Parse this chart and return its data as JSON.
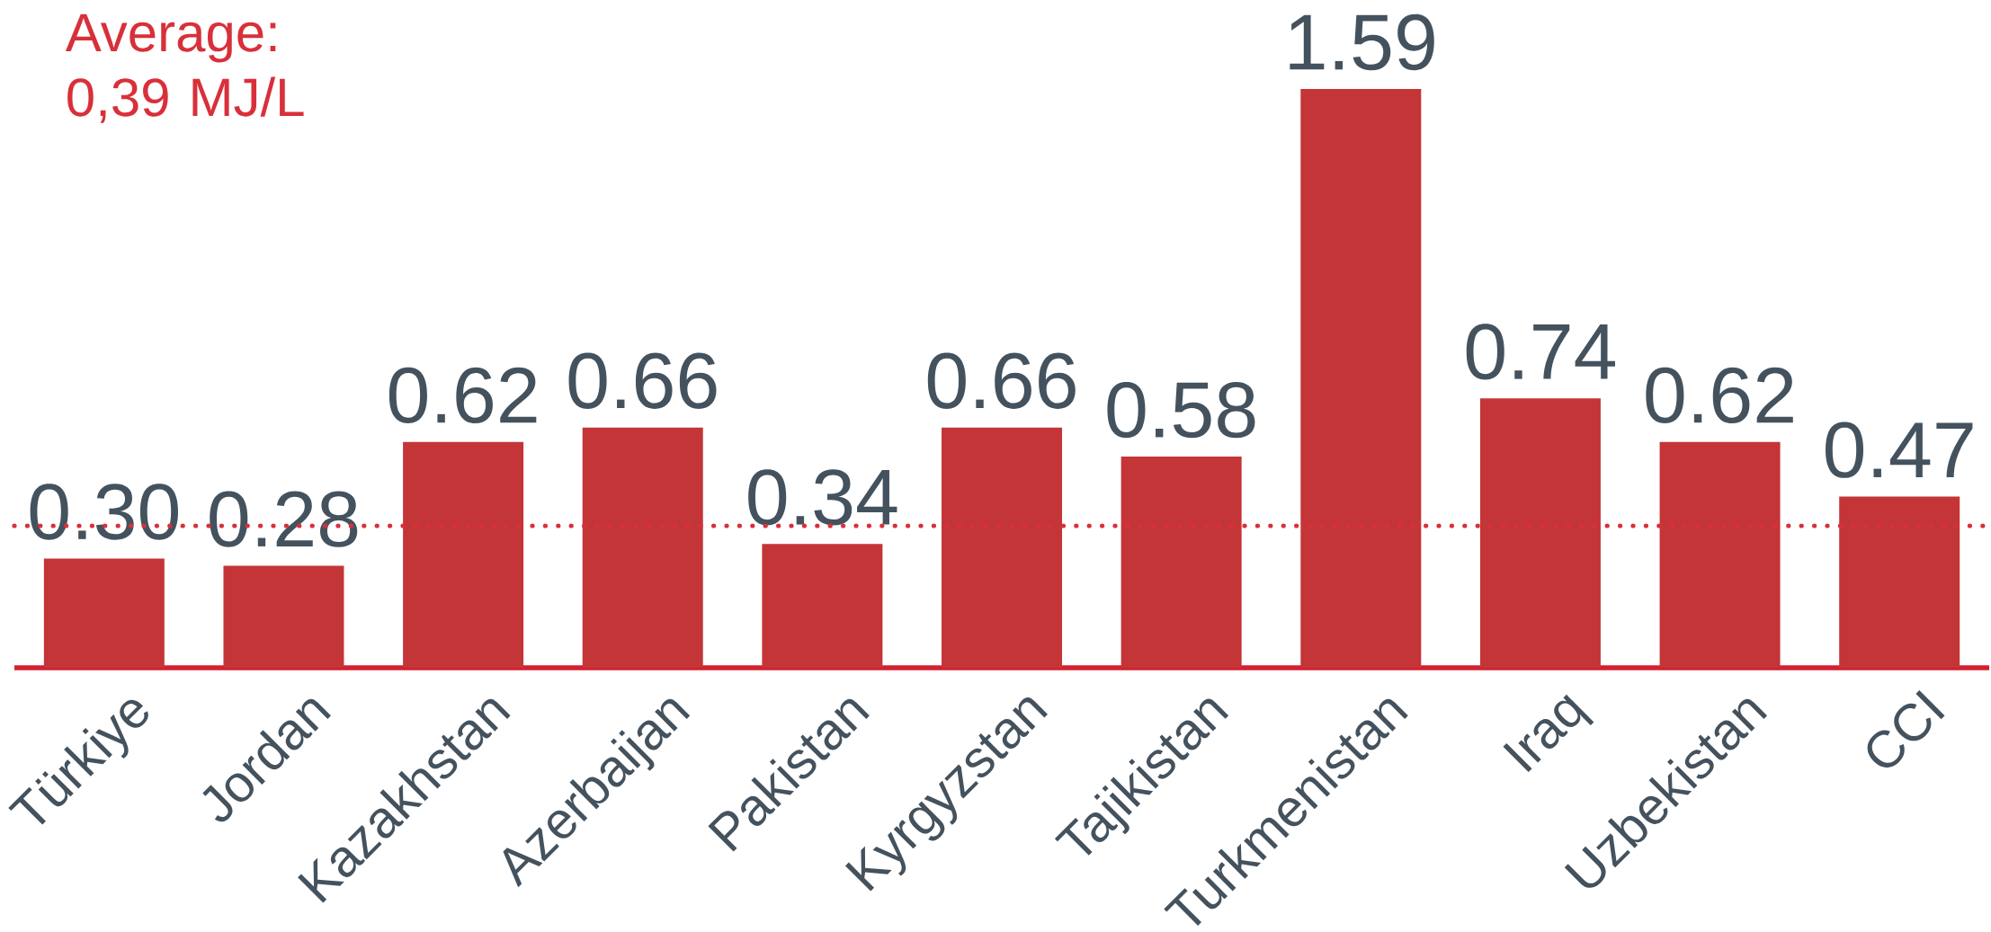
{
  "chart_data": {
    "type": "bar",
    "categories": [
      "Türkiye",
      "Jordan",
      "Kazakhstan",
      "Azerbaijan",
      "Pakistan",
      "Kyrgyzstan",
      "Tajikistan",
      "Turkmenistan",
      "Iraq",
      "Uzbekistan",
      "CCI"
    ],
    "values": [
      0.3,
      0.28,
      0.62,
      0.66,
      0.34,
      0.66,
      0.58,
      1.59,
      0.74,
      0.62,
      0.47
    ],
    "value_labels": [
      "0.30",
      "0.28",
      "0.62",
      "0.66",
      "0.34",
      "0.66",
      "0.58",
      "1.59",
      "0.74",
      "0.62",
      "0.47"
    ],
    "color": "#c43538",
    "ref_lines": [
      {
        "axis": "y",
        "value": 0.39,
        "label": "Average: 0,39 MJ/L",
        "color": "#d8303a",
        "line_style": "dotted"
      }
    ]
  }
}
